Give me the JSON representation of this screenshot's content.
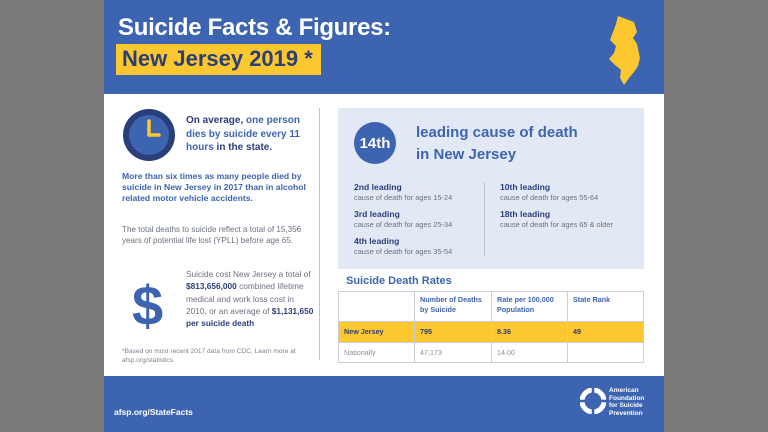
{
  "header": {
    "title": "Suicide Facts & Figures:",
    "subtitle": "New Jersey 2019 *",
    "map_color": "#fdc72f",
    "map_icon": "new-jersey-state-map"
  },
  "left": {
    "clock_icon": "clock-icon",
    "avg": {
      "prefix": "On average, ",
      "highlight": "one person dies by suicide every 11 hours",
      "suffix": " in the state."
    },
    "six_times": "More than six times as many people died by suicide in New Jersey in 2017 than in alcohol related motor vehicle accidents.",
    "ypll": "The total deaths to suicide reflect a total of 15,356 years of potential life lost (YPLL) before age 65.",
    "dollar_symbol": "$",
    "cost": {
      "line1": "Suicide cost New Jersey a total of ",
      "total": "$813,656,000",
      "line2": " combined lifetime medical and work loss cost in 2010, or an average of ",
      "avg": "$1,131,650 per suicide death",
      "line3": ""
    },
    "footnote": "*Based on most recent 2017 data from CDC. Learn more at afsp.org/statistics."
  },
  "panel": {
    "rank": "14th",
    "rank_text_line1": "leading cause of death",
    "rank_text_line2": "in New Jersey",
    "causes": [
      {
        "title": "2nd leading",
        "desc": "cause of death for ages 15-24"
      },
      {
        "title": "3rd leading",
        "desc": "cause of death for ages 25-34"
      },
      {
        "title": "4th leading",
        "desc": "cause of death for ages 35-54"
      },
      {
        "title": "10th leading",
        "desc": "cause of death for ages 55-64"
      },
      {
        "title": "18th leading",
        "desc": "cause of death for ages 65 & older"
      }
    ]
  },
  "rates": {
    "title": "Suicide Death Rates",
    "headers": [
      "",
      "Number of Deaths by Suicide",
      "Rate per 100,000 Population",
      "State Rank"
    ],
    "rows": [
      [
        "New Jersey",
        "795",
        "8.36",
        "49"
      ],
      [
        "Nationally",
        "47,173",
        "14.00",
        ""
      ]
    ]
  },
  "footer": {
    "url": "afsp.org/StateFacts",
    "logo_icon": "afsp-lifesaver-icon",
    "org_lines": [
      "American",
      "Foundation",
      "for Suicide",
      "Prevention"
    ]
  },
  "colors": {
    "brand_blue": "#3d64b1",
    "accent_yellow": "#fdc72f",
    "panel_bg": "#e3e9f4"
  }
}
